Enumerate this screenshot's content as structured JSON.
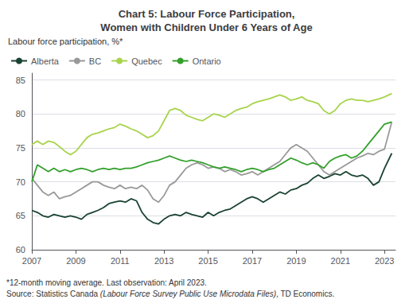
{
  "chart_data": {
    "type": "line",
    "title": "Chart 5: Labour Force Participation,\nWomen with Children Under 6 Years of Age",
    "ylabel": "Labour force participation, %*",
    "notes": [
      "*12-month moving average. Last observation: April 2023.",
      "Source: Statistics Canada (Labour Force Survey Public Use Microdata Files), TD Economics."
    ],
    "x": [
      2007.0,
      2007.25,
      2007.5,
      2007.75,
      2008.0,
      2008.25,
      2008.5,
      2008.75,
      2009.0,
      2009.25,
      2009.5,
      2009.75,
      2010.0,
      2010.25,
      2010.5,
      2010.75,
      2011.0,
      2011.25,
      2011.5,
      2011.75,
      2012.0,
      2012.25,
      2012.5,
      2012.75,
      2013.0,
      2013.25,
      2013.5,
      2013.75,
      2014.0,
      2014.25,
      2014.5,
      2014.75,
      2015.0,
      2015.25,
      2015.5,
      2015.75,
      2016.0,
      2016.25,
      2016.5,
      2016.75,
      2017.0,
      2017.25,
      2017.5,
      2017.75,
      2018.0,
      2018.25,
      2018.5,
      2018.75,
      2019.0,
      2019.25,
      2019.5,
      2019.75,
      2020.0,
      2020.25,
      2020.5,
      2020.75,
      2021.0,
      2021.25,
      2021.5,
      2021.75,
      2022.0,
      2022.25,
      2022.5,
      2022.75,
      2023.0,
      2023.33
    ],
    "series": [
      {
        "name": "Alberta",
        "color": "#1b4332",
        "values": [
          65.8,
          65.5,
          65.0,
          64.8,
          65.2,
          65.0,
          64.8,
          65.0,
          64.8,
          64.5,
          65.2,
          65.5,
          65.8,
          66.2,
          66.8,
          67.0,
          67.2,
          67.0,
          67.5,
          67.2,
          65.5,
          64.5,
          64.0,
          63.8,
          64.5,
          65.0,
          65.2,
          65.0,
          65.5,
          65.2,
          65.0,
          64.8,
          65.5,
          65.0,
          65.5,
          65.8,
          66.0,
          66.5,
          67.0,
          67.5,
          67.8,
          67.5,
          67.0,
          67.5,
          68.0,
          68.5,
          68.2,
          68.8,
          69.0,
          69.5,
          69.8,
          70.5,
          71.0,
          70.5,
          70.8,
          71.2,
          71.0,
          71.5,
          71.0,
          70.8,
          71.0,
          70.5,
          69.5,
          70.0,
          72.0,
          74.2
        ]
      },
      {
        "name": "BC",
        "color": "#999999",
        "values": [
          70.5,
          69.5,
          68.5,
          68.0,
          68.5,
          67.5,
          67.8,
          68.0,
          68.5,
          69.0,
          69.5,
          70.0,
          70.0,
          69.5,
          69.2,
          69.0,
          69.5,
          69.0,
          69.2,
          69.0,
          69.5,
          68.8,
          67.5,
          67.0,
          68.0,
          69.5,
          70.0,
          71.0,
          72.0,
          72.5,
          72.8,
          72.5,
          72.0,
          72.2,
          72.0,
          71.5,
          71.8,
          71.5,
          71.0,
          71.2,
          71.5,
          71.0,
          71.5,
          72.0,
          72.5,
          73.0,
          74.0,
          75.0,
          75.5,
          75.0,
          74.5,
          73.5,
          72.5,
          71.5,
          71.0,
          71.5,
          72.0,
          72.5,
          73.0,
          73.5,
          73.8,
          74.2,
          74.0,
          74.5,
          74.8,
          78.8
        ]
      },
      {
        "name": "Quebec",
        "color": "#a8d44d",
        "values": [
          75.5,
          76.0,
          75.5,
          76.0,
          75.8,
          75.2,
          74.5,
          74.0,
          74.5,
          75.5,
          76.5,
          77.0,
          77.2,
          77.5,
          77.8,
          78.0,
          78.5,
          78.2,
          77.8,
          77.5,
          77.0,
          76.5,
          76.8,
          77.5,
          79.0,
          80.5,
          80.8,
          80.5,
          79.8,
          79.5,
          79.2,
          79.0,
          79.5,
          80.0,
          79.8,
          79.5,
          80.0,
          80.5,
          80.8,
          81.0,
          81.5,
          81.8,
          82.0,
          82.2,
          82.5,
          82.8,
          82.5,
          82.0,
          82.2,
          82.5,
          82.0,
          81.8,
          81.5,
          80.5,
          80.0,
          80.5,
          81.5,
          82.0,
          82.2,
          82.0,
          82.0,
          81.8,
          82.0,
          82.2,
          82.5,
          83.0
        ]
      },
      {
        "name": "Ontario",
        "color": "#33a02c",
        "values": [
          70.0,
          72.5,
          72.0,
          71.5,
          72.0,
          71.5,
          71.8,
          71.5,
          71.8,
          72.0,
          71.8,
          71.5,
          71.8,
          72.0,
          71.8,
          72.0,
          71.8,
          72.0,
          72.0,
          72.2,
          72.5,
          72.8,
          73.0,
          73.2,
          73.5,
          73.8,
          73.5,
          73.2,
          73.0,
          73.2,
          73.0,
          72.8,
          72.5,
          72.2,
          72.0,
          72.2,
          72.0,
          71.8,
          71.5,
          71.8,
          72.0,
          71.8,
          71.5,
          71.8,
          72.0,
          72.5,
          73.0,
          73.5,
          73.2,
          72.8,
          72.5,
          72.8,
          72.5,
          72.0,
          73.0,
          73.5,
          73.8,
          74.0,
          73.5,
          73.8,
          74.5,
          75.5,
          76.5,
          77.5,
          78.5,
          78.8
        ]
      }
    ],
    "xlim": [
      2007.0,
      2023.5
    ],
    "xticks": [
      2007,
      2009,
      2011,
      2013,
      2015,
      2017,
      2019,
      2021,
      2023
    ],
    "ylim": [
      60,
      86
    ],
    "yticks": [
      60,
      65,
      70,
      75,
      80,
      85
    ],
    "grid": true,
    "legend": "upper left"
  }
}
